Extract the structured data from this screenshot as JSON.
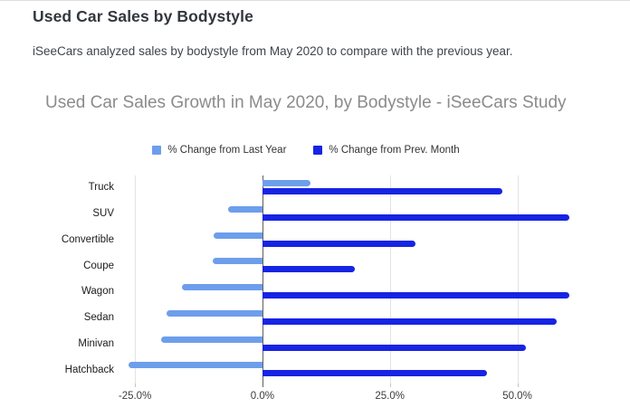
{
  "page": {
    "heading": "Used Car Sales by Bodystyle",
    "subtitle": "iSeeCars analyzed sales by bodystyle from May 2020 to compare with the previous year."
  },
  "chart_data": {
    "type": "bar",
    "orientation": "horizontal",
    "title": "Used Car Sales Growth in May 2020, by Bodystyle - iSeeCars Study",
    "categories": [
      "Truck",
      "SUV",
      "Convertible",
      "Coupe",
      "Wagon",
      "Sedan",
      "Minivan",
      "Hatchback"
    ],
    "series": [
      {
        "name": "% Change from Last Year",
        "color": "#6d9eeb",
        "values": [
          9.4,
          -6.7,
          -9.5,
          -9.8,
          -15.7,
          -18.8,
          -19.8,
          -26.3
        ]
      },
      {
        "name": "% Change from Prev. Month",
        "color": "#1724e3",
        "values": [
          47.0,
          60.2,
          30.1,
          18.2,
          60.2,
          57.7,
          51.7,
          44.0
        ]
      }
    ],
    "x_ticks": [
      {
        "value": -25,
        "label": "-25.0%"
      },
      {
        "value": 0,
        "label": "0.0%"
      },
      {
        "value": 25,
        "label": "25.0%"
      },
      {
        "value": 50,
        "label": "50.0%"
      }
    ],
    "x_range": [
      -27.5,
      65
    ],
    "grid": true,
    "legend_position": "top",
    "xlabel": "",
    "ylabel": ""
  }
}
